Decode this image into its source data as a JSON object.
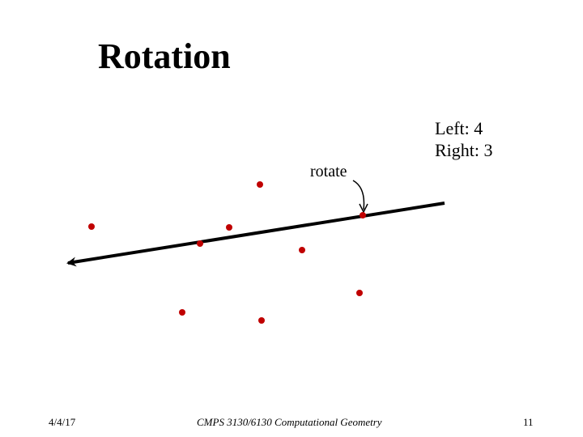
{
  "slide": {
    "title": "Rotation",
    "counts": {
      "left_text": "Left: 4",
      "right_text": "Right: 3"
    },
    "annotation": "rotate",
    "colors": {
      "point": "#c00000",
      "line": "#000000",
      "text": "#000000"
    }
  },
  "footer": {
    "date": "4/4/17",
    "course": "CMPS 3130/6130 Computational Geometry",
    "page": "11"
  }
}
